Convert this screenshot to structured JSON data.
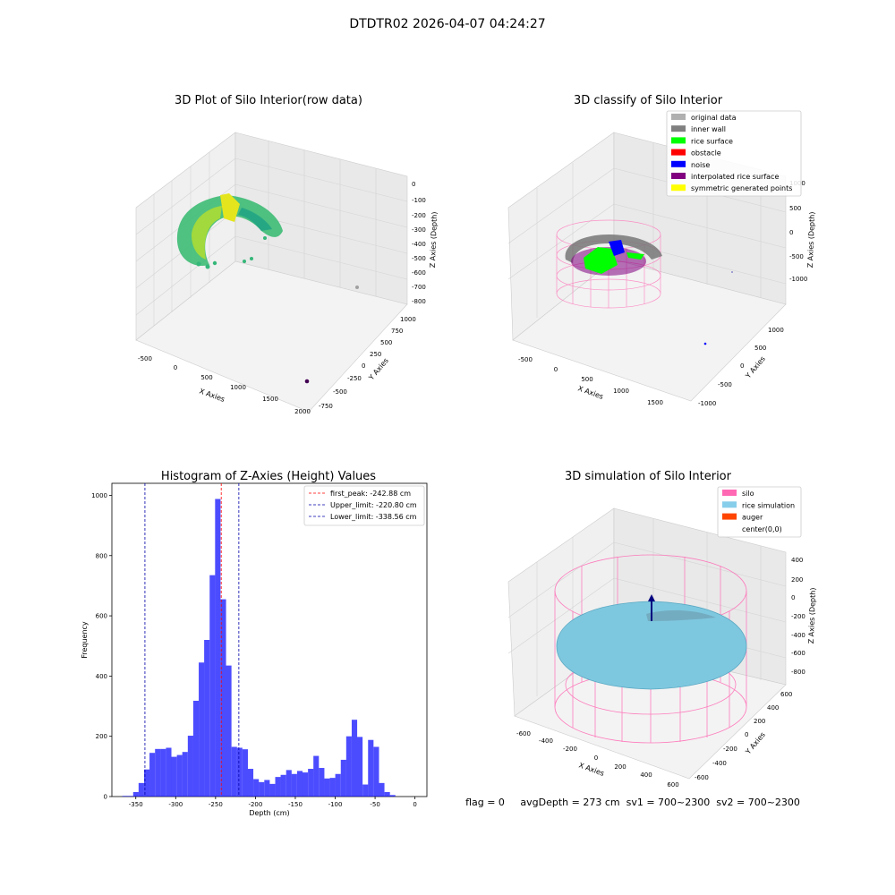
{
  "figure": {
    "suptitle": "DTDTR02 2026-04-07 04:24:27",
    "status_line": "flag = 0     avgDepth = 273 cm  sv1 = 700~2300  sv2 = 700~2300"
  },
  "panel_raw": {
    "title": "3D Plot of Silo Interior(row data)",
    "xlabel": "X Axies",
    "ylabel": "Y Axies",
    "zlabel": "Z Axies (Depth)",
    "x_ticks": [
      "-500",
      "0",
      "500",
      "1000",
      "1500",
      "2000"
    ],
    "y_ticks": [
      "-750",
      "-500",
      "-250",
      "0",
      "250",
      "500",
      "750",
      "1000"
    ],
    "z_ticks": [
      "0",
      "-100",
      "-200",
      "-300",
      "-400",
      "-500",
      "-600",
      "-700",
      "-800"
    ]
  },
  "panel_classify": {
    "title": "3D classify of Silo Interior",
    "xlabel": "X Axies",
    "ylabel": "Y Axies",
    "zlabel": "Z Axies (Depth)",
    "x_ticks": [
      "-500",
      "0",
      "500",
      "1000",
      "1500"
    ],
    "y_ticks": [
      "-1000",
      "-500",
      "0",
      "500",
      "1000"
    ],
    "z_ticks": [
      "1000",
      "500",
      "0",
      "-500",
      "-1000"
    ],
    "legend": [
      {
        "label": "original data",
        "color": "#b0b0b0"
      },
      {
        "label": "inner wall",
        "color": "#808080"
      },
      {
        "label": "rice surface",
        "color": "#00ff00"
      },
      {
        "label": "obstacle",
        "color": "#ff0000"
      },
      {
        "label": "noise",
        "color": "#0000ff"
      },
      {
        "label": "interpolated rice surface",
        "color": "#800080"
      },
      {
        "label": "symmetric generated points",
        "color": "#ffff00"
      }
    ]
  },
  "panel_sim": {
    "title": "3D simulation of Silo Interior",
    "xlabel": "X Axies",
    "ylabel": "Y Axies",
    "zlabel": "Z Axies (Depth)",
    "x_ticks": [
      "-600",
      "-400",
      "-200",
      "0",
      "200",
      "400",
      "600"
    ],
    "y_ticks": [
      "-600",
      "-400",
      "-200",
      "0",
      "200",
      "400",
      "600"
    ],
    "z_ticks": [
      "400",
      "200",
      "0",
      "-200",
      "-400",
      "-600",
      "-800"
    ],
    "legend": [
      {
        "label": "silo",
        "color": "#ff69b4"
      },
      {
        "label": "rice simulation",
        "color": "#87ceeb"
      },
      {
        "label": "auger",
        "color": "#ff4500"
      },
      {
        "label": "center(0,0)",
        "color": "#ffffff"
      }
    ]
  },
  "chart_data": {
    "type": "bar",
    "title": "Histogram of Z-Axies (Height) Values",
    "xlabel": "Depth (cm)",
    "ylabel": "Frequency",
    "xlim": [
      -380,
      15
    ],
    "ylim": [
      0,
      1040
    ],
    "x_ticks": [
      -350,
      -300,
      -250,
      -200,
      -150,
      -100,
      -50,
      0
    ],
    "y_ticks": [
      0,
      200,
      400,
      600,
      800,
      1000
    ],
    "bar_color": "#0000ff",
    "bin_width": 6.85,
    "bin_starts": [
      -367.0,
      -360.2,
      -353.3,
      -346.5,
      -339.6,
      -332.8,
      -325.9,
      -319.1,
      -312.2,
      -305.4,
      -298.5,
      -291.7,
      -284.8,
      -278.0,
      -271.1,
      -264.3,
      -257.4,
      -250.6,
      -243.7,
      -236.9,
      -230.0,
      -223.2,
      -216.3,
      -209.5,
      -202.6,
      -195.8,
      -188.9,
      -182.1,
      -175.2,
      -168.4,
      -161.5,
      -154.7,
      -147.8,
      -141.0,
      -134.1,
      -127.3,
      -120.4,
      -113.6,
      -106.7,
      -99.9,
      -93.0,
      -86.2,
      -79.3,
      -72.5,
      -65.6,
      -58.8,
      -51.9,
      -45.1,
      -38.2,
      -31.4,
      -24.5,
      -17.7,
      -10.8,
      -4.0
    ],
    "values": [
      2,
      2,
      15,
      45,
      90,
      145,
      158,
      158,
      162,
      132,
      138,
      148,
      202,
      318,
      445,
      520,
      735,
      988,
      655,
      435,
      165,
      162,
      157,
      92,
      58,
      48,
      55,
      42,
      65,
      72,
      88,
      75,
      85,
      80,
      92,
      135,
      95,
      60,
      62,
      75,
      122,
      200,
      255,
      198,
      40,
      188,
      165,
      45,
      15,
      5,
      0,
      0,
      0,
      0
    ],
    "lines": [
      {
        "name": "first_peak: -242.88 cm",
        "x": -242.88,
        "color": "#ff0000"
      },
      {
        "name": "Upper_limit: -220.80 cm",
        "x": -220.8,
        "color": "#0000aa"
      },
      {
        "name": "Lower_limit: -338.56 cm",
        "x": -338.56,
        "color": "#0000aa"
      }
    ]
  }
}
